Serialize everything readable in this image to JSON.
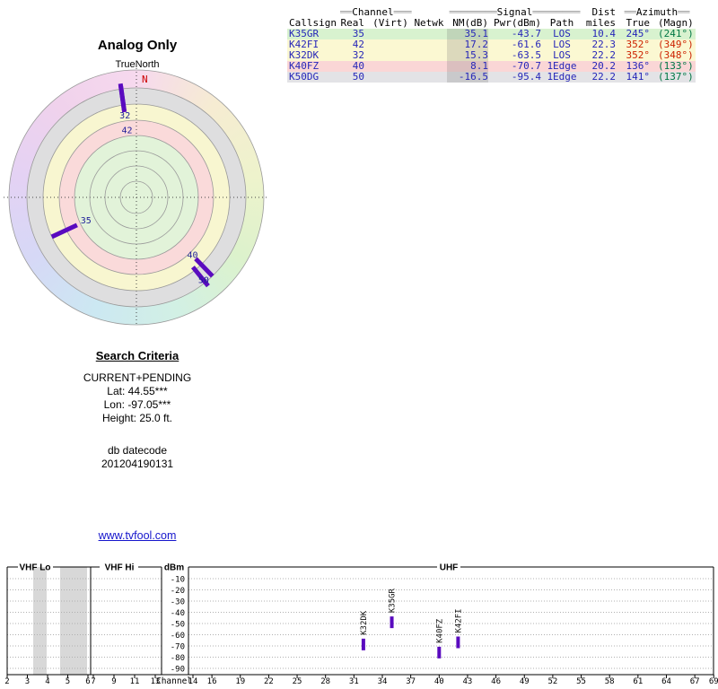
{
  "colors": {
    "accent_purple": "#5a0bbf",
    "link_blue": "#1515cc",
    "value_blue": "#2626b8",
    "north_red": "#cc0000",
    "magn_green": "#007744",
    "magn_red": "#cc2200"
  },
  "polar": {
    "title": "Analog Only",
    "subtitle": "TrueNorth",
    "north_label": "N"
  },
  "criteria": {
    "heading": "Search Criteria",
    "lines": [
      "CURRENT+PENDING",
      "Lat: 44.55***",
      "Lon: -97.05***",
      "Height: 25.0 ft."
    ],
    "db_label": "db datecode",
    "db_value": "201204190131"
  },
  "link": "www.tvfool.com",
  "table": {
    "groups": [
      {
        "pre": "══",
        "label": "Channel",
        "post": "═══",
        "align": "center"
      },
      {
        "pre": "════════",
        "label": "Signal",
        "post": "════════",
        "align": "center"
      },
      {
        "pre": "",
        "label": "Dist",
        "post": "",
        "align": "right"
      },
      {
        "pre": "══",
        "label": "Azimuth",
        "post": "══",
        "align": "center"
      }
    ],
    "columns": [
      "Callsign",
      "Real",
      "(Virt)",
      "Netwk",
      "NM(dB)",
      "Pwr(dBm)",
      "Path",
      "miles",
      "True",
      "(Magn)"
    ],
    "rows": [
      {
        "callsign": "K35GR",
        "real": "35",
        "virt": "",
        "netwk": "",
        "nm": "35.1",
        "pwr": "-43.7",
        "path": "LOS",
        "miles": "10.4",
        "true_az": "245°",
        "magn": "(241°)",
        "row_color": "#d8f2cf",
        "true_color": "#2626b8",
        "magn_color": "#007744"
      },
      {
        "callsign": "K42FI",
        "real": "42",
        "virt": "",
        "netwk": "",
        "nm": "17.2",
        "pwr": "-61.6",
        "path": "LOS",
        "miles": "22.3",
        "true_az": "352°",
        "magn": "(349°)",
        "row_color": "#fbf8d2",
        "true_color": "#cc2200",
        "magn_color": "#cc2200"
      },
      {
        "callsign": "K32DK",
        "real": "32",
        "virt": "",
        "netwk": "",
        "nm": "15.3",
        "pwr": "-63.5",
        "path": "LOS",
        "miles": "22.2",
        "true_az": "352°",
        "magn": "(348°)",
        "row_color": "#fbf8d2",
        "true_color": "#cc2200",
        "magn_color": "#cc2200"
      },
      {
        "callsign": "K40FZ",
        "real": "40",
        "virt": "",
        "netwk": "",
        "nm": "8.1",
        "pwr": "-70.7",
        "path": "1Edge",
        "miles": "20.2",
        "true_az": "136°",
        "magn": "(133°)",
        "row_color": "#fad6d6",
        "true_color": "#2626b8",
        "magn_color": "#007744"
      },
      {
        "callsign": "K50DG",
        "real": "50",
        "virt": "",
        "netwk": "",
        "nm": "-16.5",
        "pwr": "-95.4",
        "path": "1Edge",
        "miles": "22.2",
        "true_az": "141°",
        "magn": "(137°)",
        "row_color": "#e3e3e6",
        "true_color": "#2626b8",
        "magn_color": "#007744"
      }
    ]
  },
  "chart_data": [
    {
      "type": "scatter",
      "coordinate": "polar-azimuth",
      "title": "Analog Only",
      "subtitle": "TrueNorth",
      "north_label": "N",
      "points": [
        {
          "channel": "32",
          "azimuth_true": 352,
          "r_in": 98,
          "r_out": 128,
          "label_r": 92
        },
        {
          "channel": "42",
          "azimuth_true": 352,
          "r_in": 96,
          "r_out": 126,
          "label_r": 75
        },
        {
          "channel": "35",
          "azimuth_true": 245,
          "r_in": 73,
          "r_out": 104,
          "label_r": 62
        },
        {
          "channel": "40",
          "azimuth_true": 136,
          "r_in": 95,
          "r_out": 122,
          "label_r": 90
        },
        {
          "channel": "50",
          "azimuth_true": 141,
          "r_in": 100,
          "r_out": 127,
          "label_r": 119
        }
      ],
      "rings": [
        {
          "r": 142,
          "fill": "none"
        },
        {
          "r": 122,
          "fill": "#dededf"
        },
        {
          "r": 104,
          "fill": "#f8f6d0"
        },
        {
          "r": 86,
          "fill": "#fadada"
        },
        {
          "r": 69,
          "fill": "#e2f3d9"
        },
        {
          "r": 52,
          "fill": "#e2f3d9"
        },
        {
          "r": 35,
          "fill": "#e2f3d9"
        },
        {
          "r": 18,
          "fill": "#e2f3d9"
        }
      ]
    },
    {
      "type": "bar",
      "ylabel": "dBm",
      "xlabel": "Channel",
      "ylim": [
        -90,
        -10
      ],
      "yticks": [
        -10,
        -20,
        -30,
        -40,
        -50,
        -60,
        -70,
        -80,
        -90
      ],
      "sections": [
        {
          "label": "VHF Lo",
          "ticks": [
            2,
            3,
            4,
            5,
            6
          ]
        },
        {
          "label": "VHF Hi",
          "ticks": [
            7,
            9,
            11,
            13
          ]
        },
        {
          "label": "UHF",
          "ticks": [
            14,
            16,
            19,
            22,
            25,
            28,
            31,
            34,
            37,
            40,
            43,
            46,
            49,
            52,
            55,
            58,
            61,
            64,
            67,
            69
          ]
        }
      ],
      "bars": [
        {
          "callsign": "K32DK",
          "channel": 32,
          "pwr_dbm": -63.5
        },
        {
          "callsign": "K35GR",
          "channel": 35,
          "pwr_dbm": -43.7
        },
        {
          "callsign": "K40FZ",
          "channel": 40,
          "pwr_dbm": -70.7
        },
        {
          "callsign": "K42FI",
          "channel": 42,
          "pwr_dbm": -61.6
        }
      ]
    }
  ]
}
